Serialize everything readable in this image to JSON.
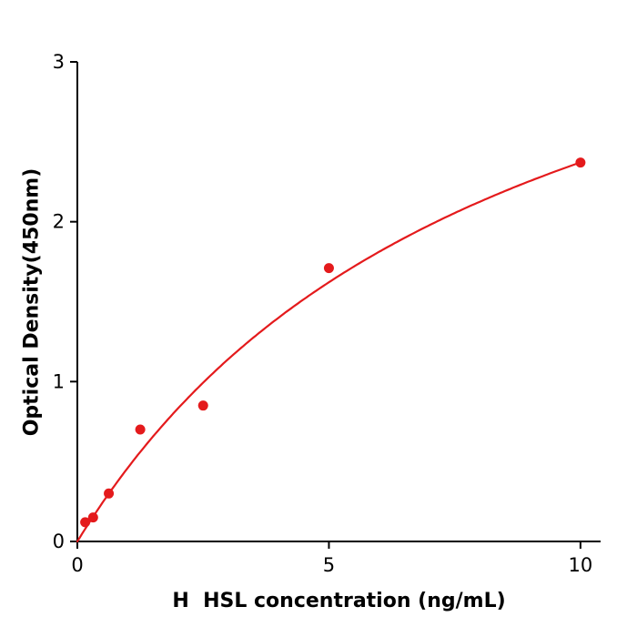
{
  "chart_data": {
    "type": "scatter",
    "title": "",
    "xlabel": "H  HSL concentration (ng/mL)",
    "ylabel": "Optical Density(450nm)",
    "xlim": [
      0,
      10.4
    ],
    "ylim": [
      0,
      3
    ],
    "xticks": [
      0,
      5,
      10
    ],
    "yticks": [
      0,
      1,
      2,
      3
    ],
    "points": [
      {
        "x": 0.156,
        "y": 0.12
      },
      {
        "x": 0.313,
        "y": 0.15
      },
      {
        "x": 0.625,
        "y": 0.3
      },
      {
        "x": 1.25,
        "y": 0.7
      },
      {
        "x": 2.5,
        "y": 0.85
      },
      {
        "x": 5,
        "y": 1.71
      },
      {
        "x": 10,
        "y": 2.37
      }
    ],
    "curve": {
      "type": "saturation-fit",
      "a": 4.41,
      "b": 8.6,
      "x_start": 0,
      "x_end": 10
    },
    "marker_color": "#e41a1c",
    "line_color": "#e41a1c",
    "axis_color": "#000000",
    "grid": false,
    "legend": false
  }
}
